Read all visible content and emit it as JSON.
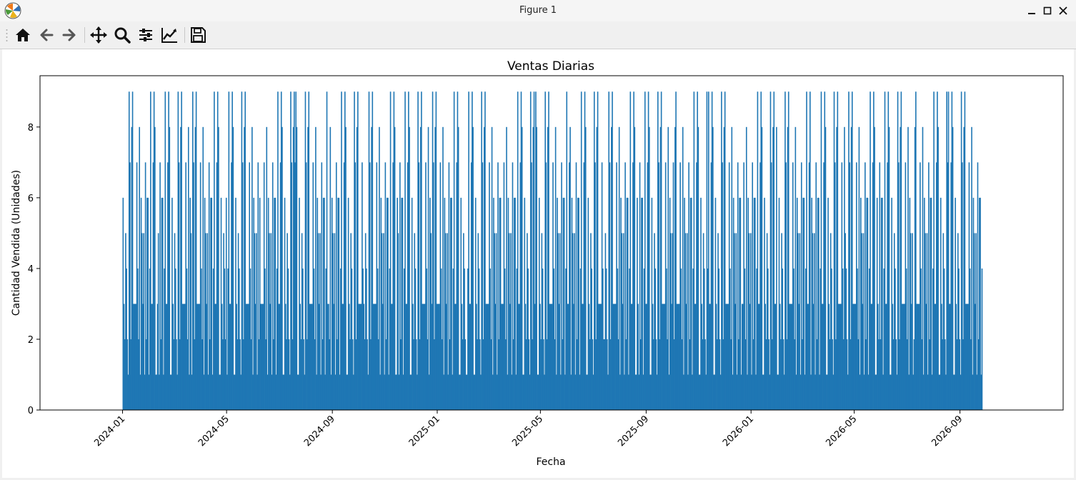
{
  "window": {
    "title": "Figure 1",
    "app_icon": "matplotlib-logo-icon",
    "controls": [
      "minimize-icon",
      "maximize-icon",
      "close-icon"
    ]
  },
  "toolbar": {
    "buttons": [
      "home-icon",
      "back-arrow-icon",
      "forward-arrow-icon",
      "pan-move-icon",
      "zoom-magnifier-icon",
      "configure-subplots-icon",
      "edit-axes-icon",
      "save-disk-icon"
    ]
  },
  "chart_data": {
    "type": "bar",
    "title": "Ventas Diarias",
    "xlabel": "Fecha",
    "ylabel": "Cantidad Vendida (Unidades)",
    "x_start": "2024-01-01",
    "x_end": "2026-09-26",
    "xlim": [
      "2023-09-27",
      "2026-12-30"
    ],
    "ylim": [
      0,
      9.45
    ],
    "yticks": [
      0,
      2,
      4,
      6,
      8
    ],
    "xticks": [
      "2024-01",
      "2024-05",
      "2024-09",
      "2025-01",
      "2025-05",
      "2025-09",
      "2026-01",
      "2026-05",
      "2026-09"
    ],
    "value_range": [
      1,
      9
    ],
    "bar_color": "#1f77b4",
    "grid": false,
    "legend": "none",
    "sample_values": [
      6,
      3,
      1,
      6,
      3,
      7,
      2,
      3,
      5,
      9,
      1,
      3,
      9,
      8,
      2,
      1,
      7,
      4,
      3,
      8,
      1,
      5,
      7,
      2,
      9,
      3,
      1,
      6,
      4,
      2,
      8,
      3,
      7,
      1,
      5,
      2,
      6,
      9,
      3,
      4
    ]
  }
}
